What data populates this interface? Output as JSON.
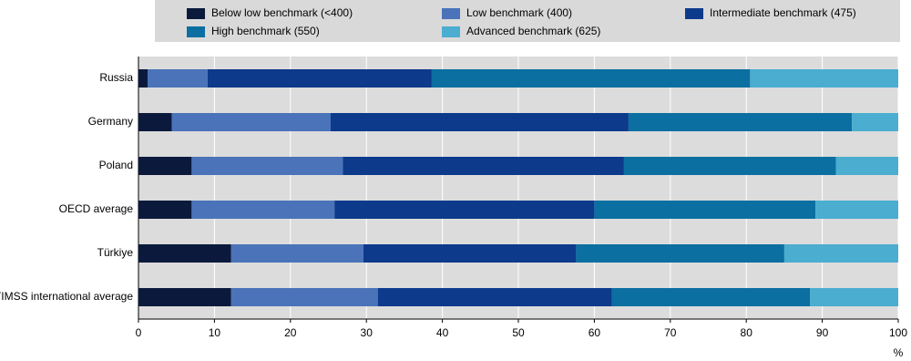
{
  "chart_data": {
    "type": "stacked-barh",
    "x_label": "%",
    "categories": [
      "Russia",
      "Germany",
      "Poland",
      "OECD average",
      "Türkiye",
      "TIMSS international average"
    ],
    "series": [
      {
        "name": "Below low benchmark (<400)",
        "color": "#0b1a3c",
        "values": [
          1.2,
          4.4,
          7.0,
          7.0,
          12.2,
          12.2
        ]
      },
      {
        "name": "Low benchmark (400)",
        "color": "#4a73b9",
        "values": [
          7.9,
          20.9,
          19.9,
          18.8,
          17.4,
          19.3
        ]
      },
      {
        "name": "Intermediate benchmark (475)",
        "color": "#0d3a8b",
        "values": [
          29.5,
          39.2,
          37.0,
          34.2,
          28.0,
          30.8
        ]
      },
      {
        "name": "High benchmark (550)",
        "color": "#0b6fa1",
        "values": [
          41.9,
          29.4,
          27.9,
          29.1,
          27.4,
          26.1
        ]
      },
      {
        "name": "Advanced benchmark (625)",
        "color": "#4badd0",
        "values": [
          19.5,
          6.1,
          8.2,
          10.9,
          15.0,
          11.6
        ]
      }
    ],
    "xlim": [
      0,
      100
    ],
    "xticks": [
      0,
      10,
      20,
      30,
      40,
      50,
      60,
      70,
      80,
      90,
      100
    ],
    "grid": true
  }
}
